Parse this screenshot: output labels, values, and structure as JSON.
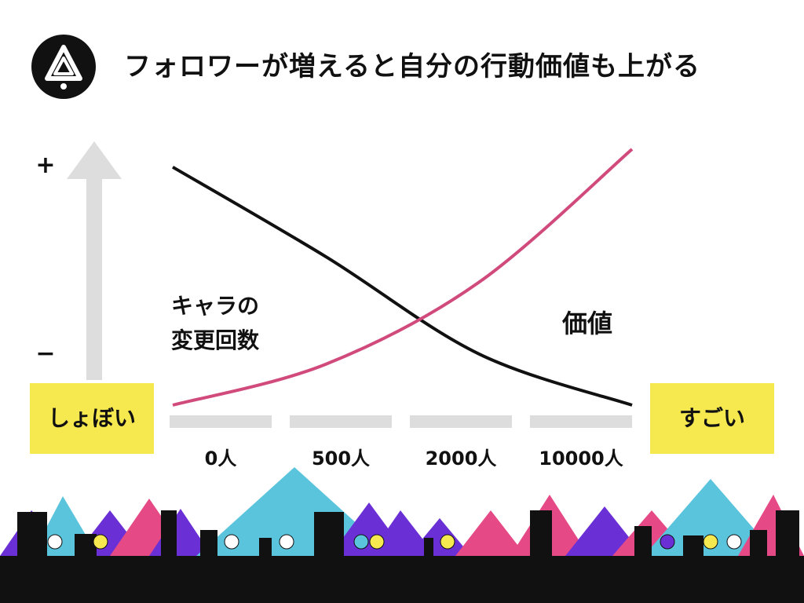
{
  "header": {
    "title": "フォロワーが増えると自分の行動価値も上がる",
    "logo_icon": "triangle-knot-logo-icon"
  },
  "axis": {
    "plus_label": "+",
    "minus_label": "−"
  },
  "boxes": {
    "left": "しょぼい",
    "right": "すごい"
  },
  "labels": {
    "value_series": "価値",
    "change_series_line1": "キャラの",
    "change_series_line2": "変更回数"
  },
  "colors": {
    "value_line": "#d14a7c",
    "change_line": "#111111",
    "box": "#f6e94f",
    "arrow": "#dddddd",
    "ground": "#111111",
    "mountain_blue": "#5bc4dd",
    "mountain_pink": "#e64a86",
    "mountain_purple": "#6b2fd6"
  },
  "chart_data": {
    "type": "line",
    "categories": [
      "0人",
      "500人",
      "2000人",
      "10000人"
    ],
    "series": [
      {
        "name": "キャラの変更回数",
        "values": [
          0.93,
          0.58,
          0.2,
          0.0
        ]
      },
      {
        "name": "価値",
        "values": [
          0.0,
          0.16,
          0.48,
          1.0
        ]
      }
    ],
    "xlabel": "",
    "ylabel": "",
    "ylim": [
      0,
      1
    ],
    "grid": false
  }
}
